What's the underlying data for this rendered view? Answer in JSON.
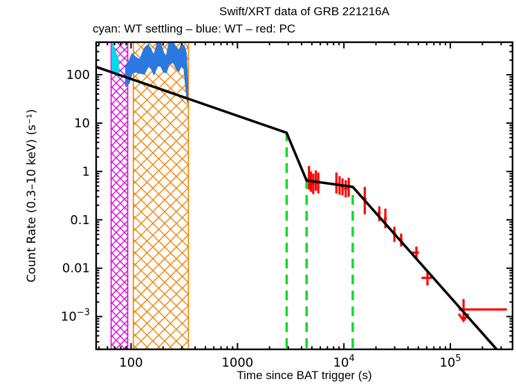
{
  "figure": {
    "title": "Swift/XRT data of GRB 221216A",
    "subtitle": "cyan: WT settling – blue: WT – red: PC",
    "xlabel": "Time since BAT trigger (s)",
    "ylabel": "Count Rate (0.3–10 keV) (s⁻¹)"
  },
  "chart_data": {
    "type": "line",
    "title": "Swift/XRT data of GRB 221216A",
    "legend_note": "cyan: WT settling – blue: WT – red: PC",
    "xlabel": "Time since BAT trigger (s)",
    "ylabel": "Count Rate (0.3–10 keV) (s⁻¹)",
    "x_scale": "log",
    "y_scale": "log",
    "xlim": [
      47,
      384000
    ],
    "ylim": [
      0.00021,
      470
    ],
    "grid": false,
    "x_major_ticks": [
      100,
      1000,
      10000,
      100000
    ],
    "x_major_labels": [
      "100",
      "1000",
      "10^4",
      "10^5"
    ],
    "y_major_ticks": [
      100,
      10,
      1,
      0.1,
      0.01,
      0.001
    ],
    "y_major_labels": [
      "100",
      "10",
      "1",
      "0.1",
      "0.01",
      "10^−3"
    ],
    "mode_windows": [
      {
        "name": "wt-settling-window",
        "t_range": [
          65,
          93
        ],
        "color": "#e000e0",
        "hatch_step": 12
      },
      {
        "name": "wt-window",
        "t_range": [
          105,
          346
        ],
        "color": "#f08200",
        "hatch_step": 17
      }
    ],
    "break_marker_lines": {
      "color": "#00dd22",
      "style": "dashed",
      "items": [
        {
          "t": 2900,
          "rate_top": 6.3
        },
        {
          "t": 4460,
          "rate_top": 0.65
        },
        {
          "t": 12100,
          "rate_top": 0.48
        }
      ]
    },
    "fit_line": {
      "color": "#000000",
      "points": [
        [
          47,
          145
        ],
        [
          2890,
          6.3
        ],
        [
          4460,
          0.65
        ],
        [
          12100,
          0.48
        ],
        [
          272000,
          0.00021
        ]
      ]
    },
    "series": [
      {
        "name": "WT settling",
        "color": "#00d8ec",
        "style": "band",
        "points_t_lo_hi": [
          [
            66,
            120,
            460
          ],
          [
            69,
            110,
            360
          ],
          [
            72,
            100,
            280
          ],
          [
            76,
            90,
            210
          ]
        ]
      },
      {
        "name": "WT",
        "color": "#2b78e0",
        "style": "band",
        "points_t_lo_hi": [
          [
            89,
            57,
            153
          ],
          [
            96,
            67,
            193
          ],
          [
            102,
            107,
            269
          ],
          [
            111,
            114,
            228
          ],
          [
            121,
            107,
            206
          ],
          [
            133,
            103,
            349
          ],
          [
            145,
            148,
            425
          ],
          [
            154,
            139,
            327
          ],
          [
            164,
            100,
            251
          ],
          [
            177,
            150,
            460
          ],
          [
            190,
            153,
            440
          ],
          [
            202,
            114,
            287
          ],
          [
            214,
            110,
            236
          ],
          [
            228,
            169,
            460
          ],
          [
            249,
            181,
            465
          ],
          [
            268,
            130,
            349
          ],
          [
            281,
            117,
            306
          ],
          [
            297,
            153,
            425
          ],
          [
            315,
            130,
            398
          ],
          [
            330,
            45,
            287
          ],
          [
            340,
            26,
            67
          ]
        ]
      },
      {
        "name": "PC",
        "color": "#ff0000",
        "style": "errorbars",
        "points_t_rate_lo_hi_t0_t1": [
          [
            4700,
            0.72,
            0.42,
            1.3,
            4550,
            4850
          ],
          [
            4900,
            0.6,
            0.38,
            1.0,
            4750,
            5050
          ],
          [
            5150,
            0.55,
            0.34,
            0.9,
            5000,
            5300
          ],
          [
            5450,
            0.65,
            0.4,
            1.05,
            5300,
            5600
          ],
          [
            5750,
            0.58,
            0.35,
            0.95,
            5600,
            5900
          ],
          [
            8500,
            0.58,
            0.35,
            0.95,
            8300,
            8750
          ],
          [
            9100,
            0.52,
            0.33,
            0.8,
            8750,
            9400
          ],
          [
            9700,
            0.48,
            0.32,
            0.72,
            9400,
            10000
          ],
          [
            10400,
            0.44,
            0.29,
            0.66,
            10000,
            10800
          ],
          [
            11100,
            0.48,
            0.3,
            0.74,
            10800,
            11500
          ],
          [
            15700,
            0.27,
            0.13,
            0.48,
            15200,
            16300
          ],
          [
            21500,
            0.14,
            0.094,
            0.19,
            20800,
            22200
          ],
          [
            24500,
            0.106,
            0.067,
            0.17,
            23700,
            25300
          ],
          [
            29800,
            0.052,
            0.035,
            0.072,
            28800,
            30800
          ],
          [
            34500,
            0.038,
            0.028,
            0.052,
            33400,
            35600
          ],
          [
            48000,
            0.021,
            0.016,
            0.028,
            43800,
            50800
          ],
          [
            61000,
            0.0063,
            0.0044,
            0.0088,
            53600,
            66900
          ]
        ]
      }
    ],
    "upper_limit": {
      "color": "#ff0000",
      "t": 133000,
      "rate": 0.0014,
      "t_bin": [
        120000,
        340000
      ],
      "arrow_from": 0.0023,
      "arrow_to": 0.00082
    }
  }
}
